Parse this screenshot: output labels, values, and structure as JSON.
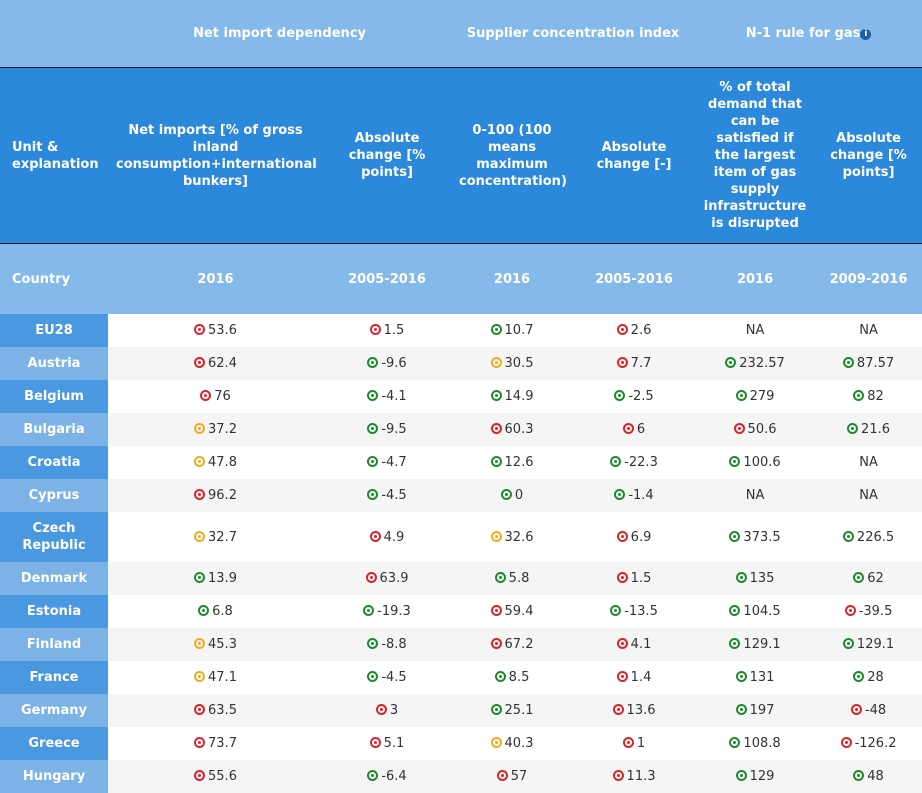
{
  "colors": {
    "red": "#d9252a",
    "green": "#1e8a2e",
    "amber": "#f0ab1c",
    "header_dark": "#2b88db",
    "header_light": "#85b9e9"
  },
  "groups": {
    "net_import": "Net import dependency",
    "supplier": "Supplier concentration index",
    "n1": "N-1 rule for gas",
    "n1_icon": "info-icon"
  },
  "units": {
    "corner": "Unit & explanation",
    "c1": "Net imports [% of gross inland consumption+international bunkers]",
    "c2": "Absolute change [% points]",
    "c3": "0-100 (100 means maximum concentration)",
    "c4": "Absolute change [-]",
    "c5": "% of total demand that can be satisfied if the largest item of gas supply infrastructure is disrupted",
    "c6": "Absolute change [% points]"
  },
  "years": {
    "corner": "Country",
    "c1": "2016",
    "c2": "2005-2016",
    "c3": "2016",
    "c4": "2005-2016",
    "c5": "2016",
    "c6": "2009-2016"
  },
  "rows": [
    {
      "country": "EU28",
      "cells": [
        {
          "v": "53.6",
          "s": "red"
        },
        {
          "v": "1.5",
          "s": "red"
        },
        {
          "v": "10.7",
          "s": "green"
        },
        {
          "v": "2.6",
          "s": "red"
        },
        {
          "v": "NA",
          "s": ""
        },
        {
          "v": "NA",
          "s": ""
        }
      ]
    },
    {
      "country": "Austria",
      "cells": [
        {
          "v": "62.4",
          "s": "red"
        },
        {
          "v": "-9.6",
          "s": "green"
        },
        {
          "v": "30.5",
          "s": "amber"
        },
        {
          "v": "7.7",
          "s": "red"
        },
        {
          "v": "232.57",
          "s": "green"
        },
        {
          "v": "87.57",
          "s": "green"
        }
      ]
    },
    {
      "country": "Belgium",
      "cells": [
        {
          "v": "76",
          "s": "red"
        },
        {
          "v": "-4.1",
          "s": "green"
        },
        {
          "v": "14.9",
          "s": "green"
        },
        {
          "v": "-2.5",
          "s": "green"
        },
        {
          "v": "279",
          "s": "green"
        },
        {
          "v": "82",
          "s": "green"
        }
      ]
    },
    {
      "country": "Bulgaria",
      "cells": [
        {
          "v": "37.2",
          "s": "amber"
        },
        {
          "v": "-9.5",
          "s": "green"
        },
        {
          "v": "60.3",
          "s": "red"
        },
        {
          "v": "6",
          "s": "red"
        },
        {
          "v": "50.6",
          "s": "red"
        },
        {
          "v": "21.6",
          "s": "green"
        }
      ]
    },
    {
      "country": "Croatia",
      "cells": [
        {
          "v": "47.8",
          "s": "amber"
        },
        {
          "v": "-4.7",
          "s": "green"
        },
        {
          "v": "12.6",
          "s": "green"
        },
        {
          "v": "-22.3",
          "s": "green"
        },
        {
          "v": "100.6",
          "s": "green"
        },
        {
          "v": "NA",
          "s": ""
        }
      ]
    },
    {
      "country": "Cyprus",
      "cells": [
        {
          "v": "96.2",
          "s": "red"
        },
        {
          "v": "-4.5",
          "s": "green"
        },
        {
          "v": "0",
          "s": "green"
        },
        {
          "v": "-1.4",
          "s": "green"
        },
        {
          "v": "NA",
          "s": ""
        },
        {
          "v": "NA",
          "s": ""
        }
      ]
    },
    {
      "country": "Czech Republic",
      "tall": true,
      "cells": [
        {
          "v": "32.7",
          "s": "amber"
        },
        {
          "v": "4.9",
          "s": "red"
        },
        {
          "v": "32.6",
          "s": "amber"
        },
        {
          "v": "6.9",
          "s": "red"
        },
        {
          "v": "373.5",
          "s": "green"
        },
        {
          "v": "226.5",
          "s": "green"
        }
      ]
    },
    {
      "country": "Denmark",
      "cells": [
        {
          "v": "13.9",
          "s": "green"
        },
        {
          "v": "63.9",
          "s": "red"
        },
        {
          "v": "5.8",
          "s": "green"
        },
        {
          "v": "1.5",
          "s": "red"
        },
        {
          "v": "135",
          "s": "green"
        },
        {
          "v": "62",
          "s": "green"
        }
      ]
    },
    {
      "country": "Estonia",
      "cells": [
        {
          "v": "6.8",
          "s": "green"
        },
        {
          "v": "-19.3",
          "s": "green"
        },
        {
          "v": "59.4",
          "s": "red"
        },
        {
          "v": "-13.5",
          "s": "green"
        },
        {
          "v": "104.5",
          "s": "green"
        },
        {
          "v": "-39.5",
          "s": "red"
        }
      ]
    },
    {
      "country": "Finland",
      "cells": [
        {
          "v": "45.3",
          "s": "amber"
        },
        {
          "v": "-8.8",
          "s": "green"
        },
        {
          "v": "67.2",
          "s": "red"
        },
        {
          "v": "4.1",
          "s": "red"
        },
        {
          "v": "129.1",
          "s": "green"
        },
        {
          "v": "129.1",
          "s": "green"
        }
      ]
    },
    {
      "country": "France",
      "cells": [
        {
          "v": "47.1",
          "s": "amber"
        },
        {
          "v": "-4.5",
          "s": "green"
        },
        {
          "v": "8.5",
          "s": "green"
        },
        {
          "v": "1.4",
          "s": "red"
        },
        {
          "v": "131",
          "s": "green"
        },
        {
          "v": "28",
          "s": "green"
        }
      ]
    },
    {
      "country": "Germany",
      "cells": [
        {
          "v": "63.5",
          "s": "red"
        },
        {
          "v": "3",
          "s": "red"
        },
        {
          "v": "25.1",
          "s": "green"
        },
        {
          "v": "13.6",
          "s": "red"
        },
        {
          "v": "197",
          "s": "green"
        },
        {
          "v": "-48",
          "s": "red"
        }
      ]
    },
    {
      "country": "Greece",
      "cells": [
        {
          "v": "73.7",
          "s": "red"
        },
        {
          "v": "5.1",
          "s": "red"
        },
        {
          "v": "40.3",
          "s": "amber"
        },
        {
          "v": "1",
          "s": "red"
        },
        {
          "v": "108.8",
          "s": "green"
        },
        {
          "v": "-126.2",
          "s": "red"
        }
      ]
    },
    {
      "country": "Hungary",
      "cells": [
        {
          "v": "55.6",
          "s": "red"
        },
        {
          "v": "-6.4",
          "s": "green"
        },
        {
          "v": "57",
          "s": "red"
        },
        {
          "v": "11.3",
          "s": "red"
        },
        {
          "v": "129",
          "s": "green"
        },
        {
          "v": "48",
          "s": "green"
        }
      ]
    }
  ]
}
